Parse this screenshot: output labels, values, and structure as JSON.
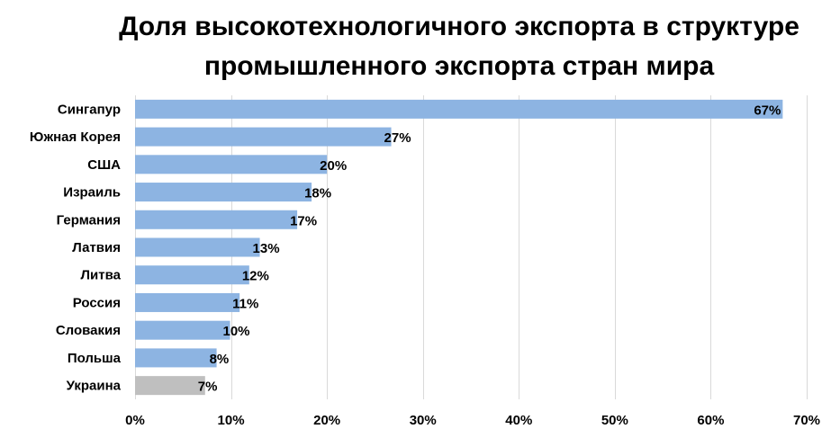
{
  "chart_data": {
    "type": "bar",
    "orientation": "horizontal",
    "title": "Доля высокотехнологичного экспорта в структуре промышленного экспорта стран мира",
    "title_lines": [
      "Доля высокотехнологичного экспорта в структуре",
      "промышленного экспорта стран мира"
    ],
    "categories": [
      "Сингапур",
      "Южная Корея",
      "США",
      "Израиль",
      "Германия",
      "Латвия",
      "Литва",
      "Россия",
      "Словакия",
      "Польша",
      "Украина"
    ],
    "values": [
      67.5,
      26.7,
      20.0,
      18.4,
      16.9,
      13.0,
      11.9,
      10.9,
      9.9,
      8.5,
      7.3
    ],
    "data_labels": [
      "67%",
      "27%",
      "20%",
      "18%",
      "17%",
      "13%",
      "12%",
      "11%",
      "10%",
      "8%",
      "7%"
    ],
    "bar_colors": [
      "#8db4e2",
      "#8db4e2",
      "#8db4e2",
      "#8db4e2",
      "#8db4e2",
      "#8db4e2",
      "#8db4e2",
      "#8db4e2",
      "#8db4e2",
      "#8db4e2",
      "#bfbfbf"
    ],
    "xlim": [
      0,
      70
    ],
    "xticks": [
      0,
      10,
      20,
      30,
      40,
      50,
      60,
      70
    ],
    "xtick_labels": [
      "0%",
      "10%",
      "20%",
      "30%",
      "40%",
      "50%",
      "60%",
      "70%"
    ],
    "xlabel": "",
    "ylabel": "",
    "grid": true,
    "gridline_color": "#d9d9d9"
  }
}
